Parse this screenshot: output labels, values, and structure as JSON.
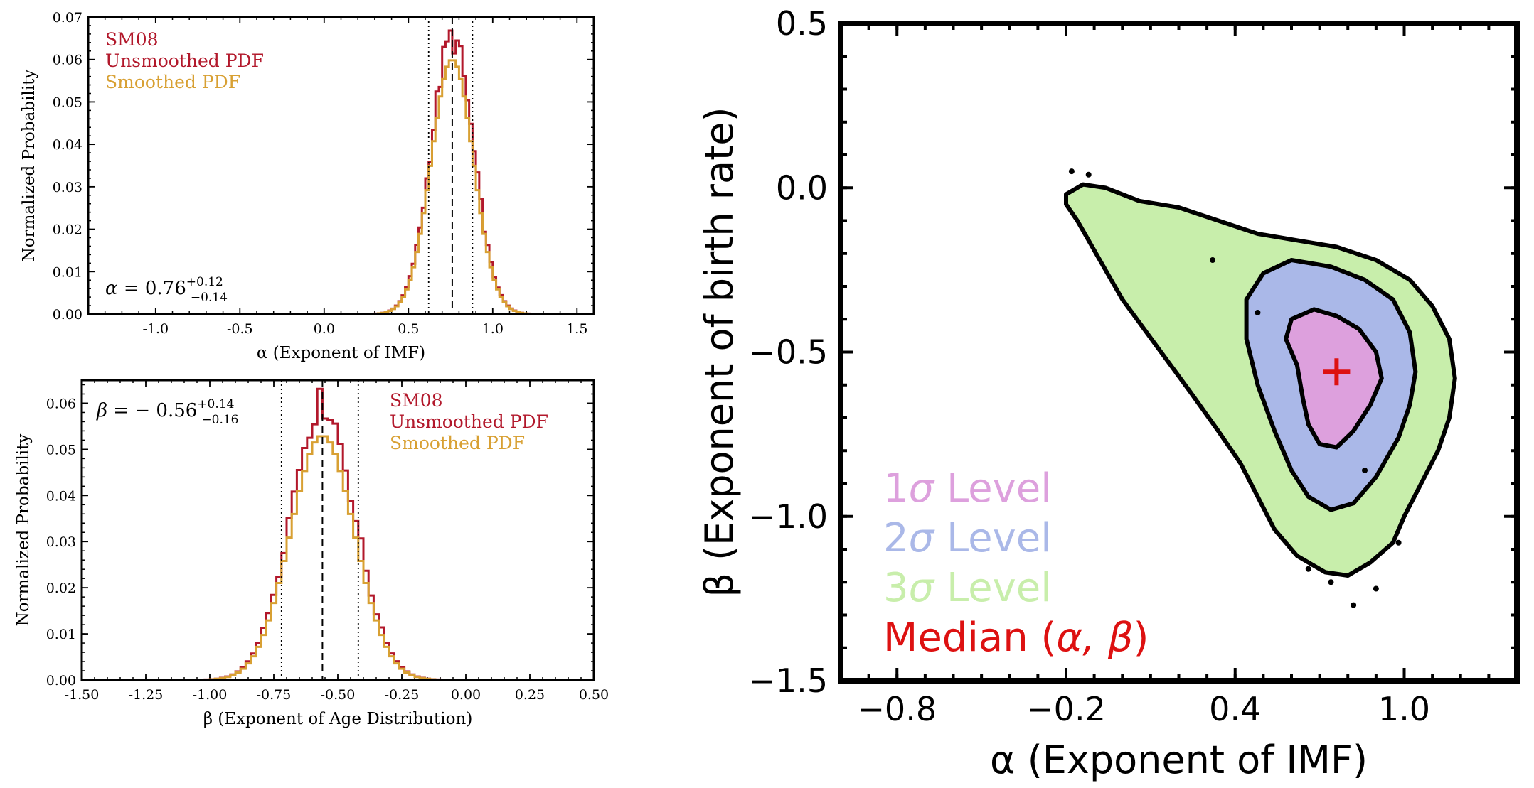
{
  "colors": {
    "unsmoothed": "#b2182b",
    "smoothed": "#d8a033",
    "sigma1": "#dda0dd",
    "sigma2": "#aab8e8",
    "sigma3": "#c8eeab",
    "median": "#dd1111",
    "axis": "#000000"
  },
  "chart_data": [
    {
      "type": "line",
      "panel": "alpha-histogram",
      "ylabel": "Normalized Probability",
      "xlabel": "α (Exponent of IMF)",
      "xlim": [
        -1.4,
        1.6
      ],
      "ylim": [
        0,
        0.07
      ],
      "xticks": [
        -1.0,
        -0.5,
        0.0,
        0.5,
        1.0,
        1.5
      ],
      "xtick_labels": [
        "-1.0",
        "-0.5",
        "0.0",
        "0.5",
        "1.0",
        "1.5"
      ],
      "yticks": [
        0,
        0.01,
        0.02,
        0.03,
        0.04,
        0.05,
        0.06,
        0.07
      ],
      "ytick_labels": [
        "0.00",
        "0.01",
        "0.02",
        "0.03",
        "0.04",
        "0.05",
        "0.06",
        "0.07"
      ],
      "legend": [
        "SM08",
        "Unsmoothed PDF",
        "Smoothed PDF"
      ],
      "legend_position": "top-left",
      "annotation": {
        "symbol": "α",
        "eq": " = 0.76",
        "sup": "+0.12",
        "sub": "−0.14"
      },
      "median": 0.76,
      "lower": 0.62,
      "upper": 0.88,
      "center": 0.76,
      "sigma": 0.125,
      "peak_unsmoothed": 0.065,
      "peak_smoothed": 0.06,
      "bin_width": 0.02,
      "series": [
        {
          "name": "Unsmoothed PDF",
          "color_key": "unsmoothed"
        },
        {
          "name": "Smoothed PDF",
          "color_key": "smoothed"
        }
      ]
    },
    {
      "type": "line",
      "panel": "beta-histogram",
      "ylabel": "Normalized Probability",
      "xlabel": "β (Exponent of Age Distribution)",
      "xlim": [
        -1.5,
        0.5
      ],
      "ylim": [
        0,
        0.065
      ],
      "xticks": [
        -1.5,
        -1.25,
        -1.0,
        -0.75,
        -0.5,
        -0.25,
        0.0,
        0.25,
        0.5
      ],
      "xtick_labels": [
        "-1.50",
        "-1.25",
        "-1.00",
        "-0.75",
        "-0.50",
        "-0.25",
        "0.00",
        "0.25",
        "0.50"
      ],
      "yticks": [
        0,
        0.01,
        0.02,
        0.03,
        0.04,
        0.05,
        0.06
      ],
      "ytick_labels": [
        "0.00",
        "0.01",
        "0.02",
        "0.03",
        "0.04",
        "0.05",
        "0.06"
      ],
      "legend": [
        "SM08",
        "Unsmoothed PDF",
        "Smoothed PDF"
      ],
      "legend_position": "top-right",
      "annotation": {
        "symbol": "β",
        "eq": " = − 0.56",
        "sup": "+0.14",
        "sub": "−0.16"
      },
      "median": -0.56,
      "lower": -0.72,
      "upper": -0.42,
      "center": -0.56,
      "sigma": 0.125,
      "peak_unsmoothed": 0.06,
      "peak_smoothed": 0.053,
      "bin_width": 0.02,
      "series": [
        {
          "name": "Unsmoothed PDF",
          "color_key": "unsmoothed"
        },
        {
          "name": "Smoothed PDF",
          "color_key": "smoothed"
        }
      ]
    },
    {
      "type": "contour",
      "panel": "joint-contour",
      "xlabel": "α (Exponent of IMF)",
      "ylabel": "β (Exponent of birth rate)",
      "xlim": [
        -1.0,
        1.4
      ],
      "ylim": [
        -1.5,
        0.5
      ],
      "xticks": [
        -0.8,
        -0.2,
        0.4,
        1.0
      ],
      "xtick_labels": [
        "−0.8",
        "−0.2",
        "0.4",
        "1.0"
      ],
      "yticks": [
        0.5,
        0.0,
        -0.5,
        -1.0,
        -1.5
      ],
      "ytick_labels": [
        "0.5",
        "0.0",
        "−0.5",
        "−1.0",
        "−1.5"
      ],
      "legend_position": "bottom-left",
      "legend": [
        {
          "label_prefix": "1",
          "symbol": "σ",
          "text": " Level",
          "color_key": "sigma1"
        },
        {
          "label_prefix": "2",
          "symbol": "σ",
          "text": " Level",
          "color_key": "sigma2"
        },
        {
          "label_prefix": "3",
          "symbol": "σ",
          "text": " Level",
          "color_key": "sigma3"
        },
        {
          "label_prefix": "Median (",
          "symbol": "α, β",
          "text": ")",
          "color_key": "median"
        }
      ],
      "median_point": {
        "x": 0.76,
        "y": -0.56
      },
      "regions": [
        {
          "level": "3σ",
          "color_key": "sigma3",
          "points": [
            [
              -0.2,
              -0.02
            ],
            [
              -0.14,
              0.01
            ],
            [
              -0.06,
              0.0
            ],
            [
              0.06,
              -0.04
            ],
            [
              0.2,
              -0.06
            ],
            [
              0.34,
              -0.1
            ],
            [
              0.48,
              -0.14
            ],
            [
              0.62,
              -0.16
            ],
            [
              0.76,
              -0.18
            ],
            [
              0.9,
              -0.22
            ],
            [
              1.02,
              -0.28
            ],
            [
              1.1,
              -0.36
            ],
            [
              1.16,
              -0.46
            ],
            [
              1.18,
              -0.58
            ],
            [
              1.16,
              -0.7
            ],
            [
              1.12,
              -0.8
            ],
            [
              1.06,
              -0.9
            ],
            [
              1.0,
              -1.0
            ],
            [
              0.96,
              -1.08
            ],
            [
              0.88,
              -1.14
            ],
            [
              0.8,
              -1.18
            ],
            [
              0.72,
              -1.17
            ],
            [
              0.62,
              -1.12
            ],
            [
              0.54,
              -1.04
            ],
            [
              0.48,
              -0.94
            ],
            [
              0.42,
              -0.84
            ],
            [
              0.34,
              -0.74
            ],
            [
              0.24,
              -0.62
            ],
            [
              0.12,
              -0.48
            ],
            [
              0.0,
              -0.34
            ],
            [
              -0.08,
              -0.22
            ],
            [
              -0.16,
              -0.1
            ],
            [
              -0.2,
              -0.05
            ]
          ]
        },
        {
          "level": "2σ",
          "color_key": "sigma2",
          "points": [
            [
              0.5,
              -0.26
            ],
            [
              0.6,
              -0.22
            ],
            [
              0.74,
              -0.24
            ],
            [
              0.86,
              -0.28
            ],
            [
              0.96,
              -0.34
            ],
            [
              1.02,
              -0.44
            ],
            [
              1.04,
              -0.56
            ],
            [
              1.02,
              -0.66
            ],
            [
              0.98,
              -0.76
            ],
            [
              0.9,
              -0.88
            ],
            [
              0.82,
              -0.96
            ],
            [
              0.74,
              -0.98
            ],
            [
              0.66,
              -0.94
            ],
            [
              0.6,
              -0.86
            ],
            [
              0.54,
              -0.74
            ],
            [
              0.48,
              -0.6
            ],
            [
              0.44,
              -0.46
            ],
            [
              0.44,
              -0.34
            ]
          ]
        },
        {
          "level": "1σ",
          "color_key": "sigma1",
          "points": [
            [
              0.6,
              -0.4
            ],
            [
              0.68,
              -0.37
            ],
            [
              0.76,
              -0.39
            ],
            [
              0.84,
              -0.43
            ],
            [
              0.9,
              -0.5
            ],
            [
              0.92,
              -0.58
            ],
            [
              0.88,
              -0.66
            ],
            [
              0.82,
              -0.74
            ],
            [
              0.76,
              -0.79
            ],
            [
              0.7,
              -0.78
            ],
            [
              0.66,
              -0.72
            ],
            [
              0.64,
              -0.64
            ],
            [
              0.62,
              -0.54
            ],
            [
              0.58,
              -0.46
            ]
          ]
        }
      ]
    }
  ]
}
